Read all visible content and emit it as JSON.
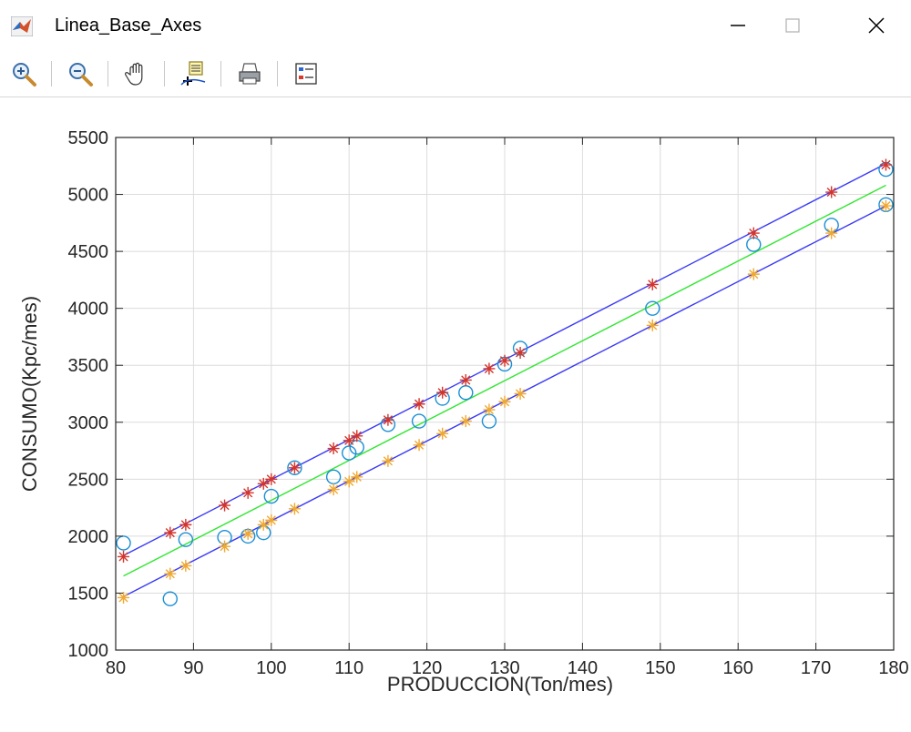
{
  "window": {
    "title": "Linea_Base_Axes",
    "controls": {
      "minimize": "minimize-icon",
      "maximize": "maximize-icon",
      "close": "close-icon"
    }
  },
  "toolbar": {
    "tools": [
      {
        "name": "zoom-in-icon"
      },
      {
        "name": "zoom-out-icon"
      },
      {
        "name": "pan-hand-icon"
      },
      {
        "name": "data-cursor-icon"
      },
      {
        "name": "print-icon"
      },
      {
        "name": "legend-icon"
      }
    ]
  },
  "colors": {
    "upper_lower_lines": "#3a3af5",
    "fit_line": "#33e633",
    "observed": "#1a8fd4",
    "upper_points": "#d4352b",
    "lower_points": "#f0a830",
    "grid": "#dcdcdc"
  },
  "chart_data": {
    "type": "scatter",
    "xlabel": "PRODUCCION(Ton/mes)",
    "ylabel": "CONSUMO(Kpc/mes)",
    "xlim": [
      80,
      180
    ],
    "ylim": [
      1000,
      5500
    ],
    "xticks": [
      80,
      90,
      100,
      110,
      120,
      130,
      140,
      150,
      160,
      170,
      180
    ],
    "yticks": [
      1000,
      1500,
      2000,
      2500,
      3000,
      3500,
      4000,
      4500,
      5000,
      5500
    ],
    "grid": true,
    "series": [
      {
        "marker": "circle",
        "color": "#1a8fd4",
        "points": [
          [
            81,
            1940
          ],
          [
            87,
            1450
          ],
          [
            89,
            1970
          ],
          [
            94,
            1990
          ],
          [
            97,
            2000
          ],
          [
            99,
            2030
          ],
          [
            100,
            2350
          ],
          [
            103,
            2600
          ],
          [
            108,
            2520
          ],
          [
            110,
            2730
          ],
          [
            111,
            2780
          ],
          [
            115,
            2980
          ],
          [
            119,
            3010
          ],
          [
            122,
            3210
          ],
          [
            125,
            3260
          ],
          [
            128,
            3010
          ],
          [
            130,
            3510
          ],
          [
            132,
            3650
          ],
          [
            149,
            4000
          ],
          [
            162,
            4560
          ],
          [
            172,
            4730
          ],
          [
            179,
            5220
          ],
          [
            179,
            4910
          ]
        ]
      },
      {
        "marker": "asterisk",
        "color": "#d4352b",
        "points": [
          [
            81,
            1820
          ],
          [
            87,
            2030
          ],
          [
            89,
            2100
          ],
          [
            94,
            2270
          ],
          [
            97,
            2380
          ],
          [
            99,
            2460
          ],
          [
            100,
            2500
          ],
          [
            103,
            2600
          ],
          [
            108,
            2770
          ],
          [
            110,
            2840
          ],
          [
            111,
            2880
          ],
          [
            115,
            3020
          ],
          [
            119,
            3160
          ],
          [
            122,
            3260
          ],
          [
            125,
            3370
          ],
          [
            128,
            3470
          ],
          [
            130,
            3540
          ],
          [
            132,
            3610
          ],
          [
            149,
            4210
          ],
          [
            162,
            4660
          ],
          [
            172,
            5020
          ],
          [
            179,
            5260
          ]
        ]
      },
      {
        "marker": "asterisk",
        "color": "#f0a830",
        "points": [
          [
            81,
            1460
          ],
          [
            87,
            1670
          ],
          [
            89,
            1740
          ],
          [
            94,
            1910
          ],
          [
            97,
            2020
          ],
          [
            99,
            2100
          ],
          [
            100,
            2140
          ],
          [
            103,
            2240
          ],
          [
            108,
            2410
          ],
          [
            110,
            2480
          ],
          [
            111,
            2520
          ],
          [
            115,
            2660
          ],
          [
            119,
            2800
          ],
          [
            122,
            2900
          ],
          [
            125,
            3010
          ],
          [
            128,
            3110
          ],
          [
            130,
            3180
          ],
          [
            132,
            3250
          ],
          [
            149,
            3850
          ],
          [
            162,
            4300
          ],
          [
            172,
            4660
          ],
          [
            179,
            4900
          ]
        ]
      },
      {
        "type": "line",
        "color": "#3a3af5",
        "points": [
          [
            81,
            1830
          ],
          [
            179,
            5270
          ]
        ]
      },
      {
        "type": "line",
        "color": "#33e633",
        "points": [
          [
            81,
            1650
          ],
          [
            179,
            5080
          ]
        ]
      },
      {
        "type": "line",
        "color": "#3a3af5",
        "points": [
          [
            81,
            1470
          ],
          [
            179,
            4900
          ]
        ]
      }
    ]
  }
}
